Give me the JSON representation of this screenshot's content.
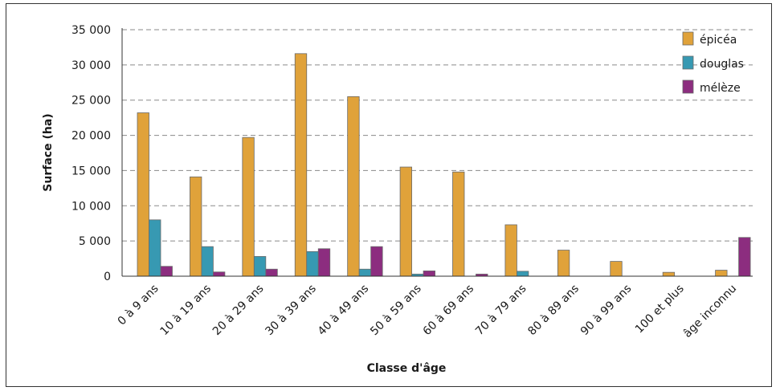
{
  "chart_data": {
    "type": "bar",
    "title": "",
    "xlabel": "Classe d'âge",
    "ylabel": "Surface (ha)",
    "ylim": [
      0,
      35000
    ],
    "yticks": [
      0,
      5000,
      10000,
      15000,
      20000,
      25000,
      30000,
      35000
    ],
    "ytick_labels": [
      "0",
      "5 000",
      "10 000",
      "15 000",
      "20 000",
      "25 000",
      "30 000",
      "35 000"
    ],
    "grid": "horizontal dashed",
    "legend_position": "top-right",
    "categories": [
      "0 à 9 ans",
      "10 à 19 ans",
      "20 à 29 ans",
      "30 à 39 ans",
      "40 à 49 ans",
      "50 à 59 ans",
      "60 à 69 ans",
      "70 à 79 ans",
      "80 à 89 ans",
      "90 à 99 ans",
      "100 et plus",
      "âge inconnu"
    ],
    "series": [
      {
        "name": "épicéa",
        "color": "#E0A23A",
        "values": [
          23200,
          14100,
          19700,
          31600,
          25500,
          15500,
          14800,
          7300,
          3700,
          2100,
          550,
          850
        ]
      },
      {
        "name": "douglas",
        "color": "#3799B2",
        "values": [
          8000,
          4200,
          2800,
          3500,
          1000,
          300,
          0,
          700,
          0,
          0,
          0,
          0
        ]
      },
      {
        "name": "mélèze",
        "color": "#8C2D7F",
        "values": [
          1400,
          600,
          1000,
          3900,
          4200,
          750,
          300,
          0,
          0,
          0,
          0,
          5500
        ]
      }
    ]
  }
}
